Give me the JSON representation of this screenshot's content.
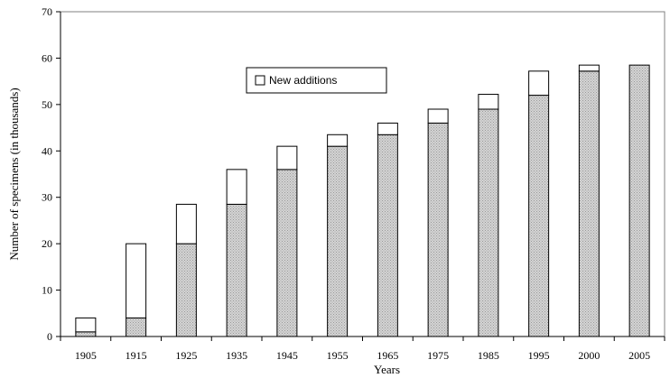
{
  "chart_data": {
    "type": "bar",
    "stacked": true,
    "categories": [
      "1905",
      "1915",
      "1925",
      "1935",
      "1945",
      "1955",
      "1965",
      "1975",
      "1985",
      "1995",
      "2000",
      "2005"
    ],
    "series": [
      {
        "values": [
          1,
          4,
          20,
          28.5,
          36,
          41,
          43.5,
          46,
          49,
          52,
          57.2,
          58.5
        ],
        "color": "#c8c8c8",
        "pattern": "dotted-grey"
      },
      {
        "name": "New additions",
        "values": [
          3,
          16,
          8.5,
          7.5,
          5,
          2.5,
          2.5,
          3,
          3.2,
          5.2,
          1.3,
          0
        ],
        "color": "#ffffff"
      }
    ],
    "xlabel": "Years",
    "ylabel": "Number of specimens (in thousands)",
    "ylim": [
      0,
      70
    ],
    "yticks": [
      "0",
      "10",
      "20",
      "30",
      "40",
      "50",
      "60",
      "70"
    ],
    "grid": false,
    "legend": {
      "position": "top-center",
      "entries": [
        "New additions"
      ]
    }
  }
}
